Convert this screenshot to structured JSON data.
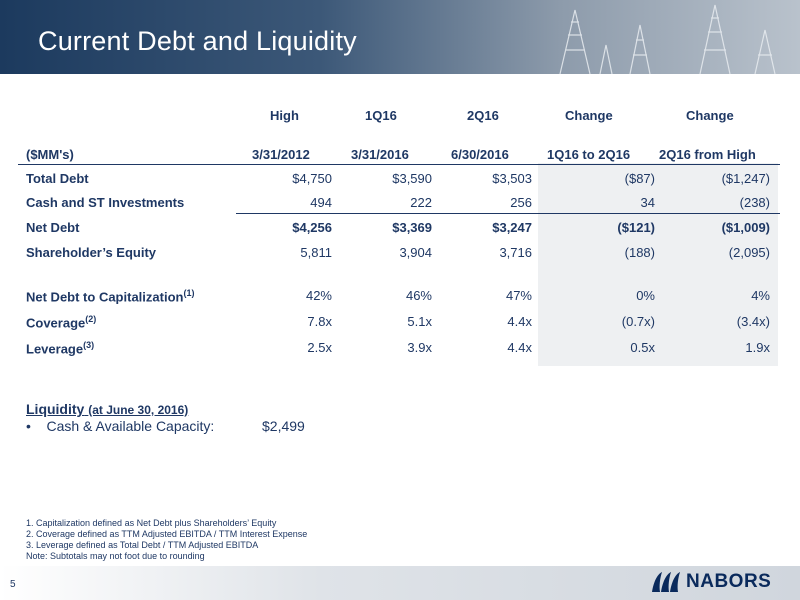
{
  "header": {
    "title": "Current Debt and Liquidity"
  },
  "table": {
    "col_group": [
      "High",
      "1Q16",
      "2Q16",
      "Change",
      "Change"
    ],
    "col_headers": [
      "($MM's)",
      "3/31/2012",
      "3/31/2016",
      "6/30/2016",
      "1Q16 to 2Q16",
      "2Q16 from High"
    ],
    "rows": [
      {
        "label": "Total Debt",
        "sup": "",
        "values": [
          "$4,750",
          "$3,590",
          "$3,503",
          "($87)",
          "($1,247)"
        ],
        "bold": false
      },
      {
        "label": "Cash and ST Investments",
        "sup": "",
        "values": [
          "494",
          "222",
          "256",
          "34",
          "(238)"
        ],
        "bold": false
      },
      {
        "label": "Net Debt",
        "sup": "",
        "values": [
          "$4,256",
          "$3,369",
          "$3,247",
          "($121)",
          "($1,009)"
        ],
        "bold": true
      },
      {
        "label": "Shareholder’s Equity",
        "sup": "",
        "values": [
          "5,811",
          "3,904",
          "3,716",
          "(188)",
          "(2,095)"
        ],
        "bold": false
      },
      {
        "label": "Net Debt to Capitalization",
        "sup": "(1)",
        "values": [
          "42%",
          "46%",
          "47%",
          "0%",
          "4%"
        ],
        "bold": false
      },
      {
        "label": "Coverage",
        "sup": "(2)",
        "values": [
          "7.8x",
          "5.1x",
          "4.4x",
          "(0.7x)",
          "(3.4x)"
        ],
        "bold": false
      },
      {
        "label": "Leverage",
        "sup": "(3)",
        "values": [
          "2.5x",
          "3.9x",
          "4.4x",
          "0.5x",
          "1.9x"
        ],
        "bold": false
      }
    ]
  },
  "liquidity": {
    "title": "Liquidity",
    "title_note": "(at June 30, 2016)",
    "item_label": "Cash & Available Capacity:",
    "item_value": "$2,499"
  },
  "notes": [
    "1. Capitalization defined as Net Debt plus Shareholders’ Equity",
    "2. Coverage defined as TTM Adjusted EBITDA / TTM Interest Expense",
    "3. Leverage defined as Total Debt / TTM Adjusted EBITDA",
    "Note:  Subtotals may not foot due to rounding"
  ],
  "footer": {
    "page_number": "5",
    "logo_text": "NABORS"
  },
  "colors": {
    "navy": "#1f3864",
    "header_dark": "#1c3a5e",
    "shade": "#eef0f2"
  }
}
